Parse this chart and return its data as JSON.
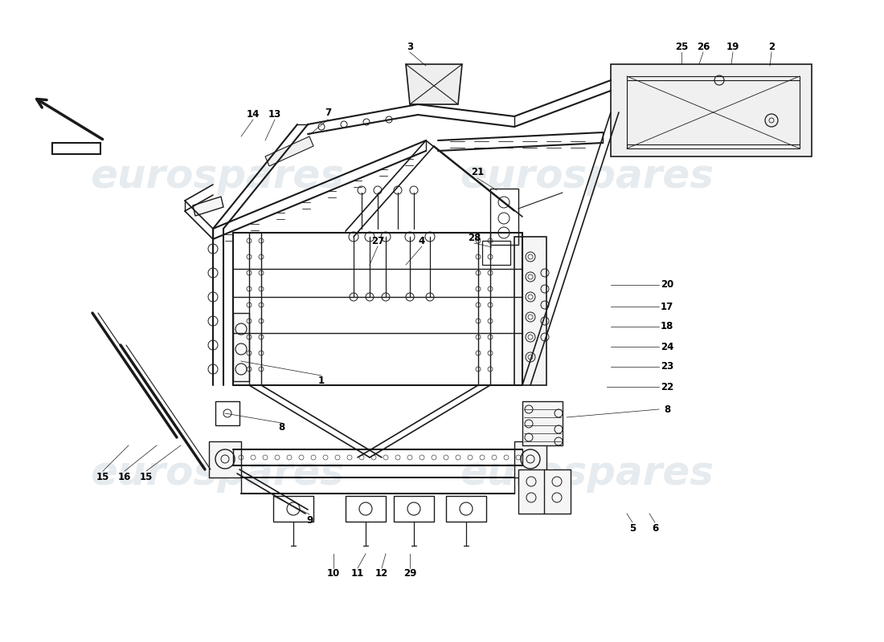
{
  "bg_color": "#ffffff",
  "watermark_text": "eurospares",
  "watermark_color": "#c8d4dc",
  "watermark_alpha": 0.45,
  "line_color": "#1a1a1a",
  "line_width": 1.0,
  "label_fontsize": 8.5,
  "label_color": "#000000",
  "fig_width": 11.0,
  "fig_height": 8.0,
  "dpi": 100
}
